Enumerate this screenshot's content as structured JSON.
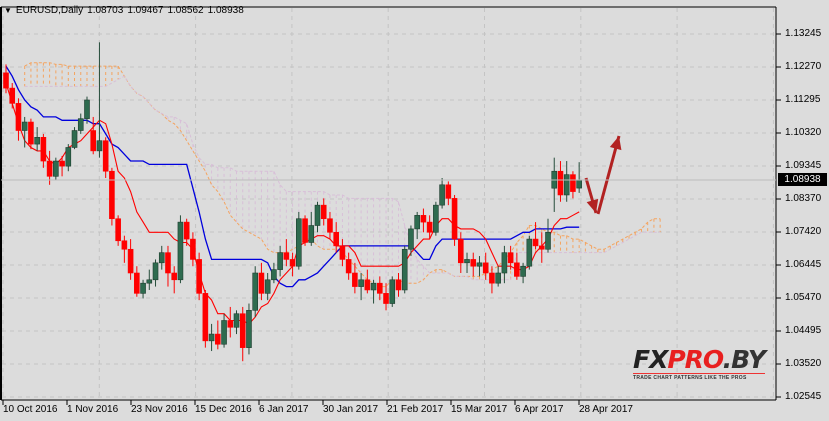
{
  "header": {
    "dropdown_icon": "triangle-down-icon",
    "symbol": "EURUSD,Daily",
    "open": "1.08703",
    "high": "1.09467",
    "low": "1.08562",
    "close": "1.08938"
  },
  "current_price_label": "1.08938",
  "watermark": {
    "fx": "FX",
    "pro": "PRO",
    "by": ".BY",
    "tagline": "TRADE CHART PATTERNS LIKE THE PROS"
  },
  "colors": {
    "background": "#dcdcdc",
    "grid": "#c4c4c4",
    "bull_candle": "#2e6b4f",
    "bear_candle": "#ff0000",
    "tenkan": "#ff0000",
    "kijun": "#0000dd",
    "span_a": "#f4a460",
    "span_b": "#d8bfd8",
    "arrows": "#b22222"
  },
  "chart_data": {
    "type": "candlestick",
    "title": "EURUSD,Daily",
    "xlabel": "",
    "ylabel": "",
    "ylim": [
      1.02545,
      1.13245
    ],
    "grid": true,
    "y_ticks": [
      "1.13245",
      "1.12270",
      "1.11295",
      "1.10320",
      "1.09345",
      "1.08370",
      "1.07420",
      "1.06445",
      "1.05470",
      "1.04495",
      "1.03520",
      "1.02545"
    ],
    "x_ticks": [
      "10 Oct 2016",
      "1 Nov 2016",
      "23 Nov 2016",
      "15 Dec 2016",
      "6 Jan 2017",
      "30 Jan 2017",
      "21 Feb 2017",
      "15 Mar 2017",
      "6 Apr 2017",
      "28 Apr 2017"
    ],
    "last_ohlc": {
      "open": 1.08703,
      "high": 1.09467,
      "low": 1.08562,
      "close": 1.08938
    },
    "indicators": [
      "Ichimoku Kinko Hyo: Tenkan-sen (red)",
      "Kijun-sen (blue)",
      "Senkou Span A (sandy, dotted cloud)",
      "Senkou Span B (thistle, dotted cloud)"
    ],
    "annotations": [
      "Arrow down toward ~1.080",
      "Arrow up toward ~1.103"
    ],
    "candles": [
      [
        1.121,
        1.1235,
        1.115,
        1.1165
      ],
      [
        1.1165,
        1.118,
        1.1105,
        1.112
      ],
      [
        1.112,
        1.1135,
        1.101,
        1.104
      ],
      [
        1.104,
        1.108,
        1.099,
        1.1065
      ],
      [
        1.1065,
        1.1075,
        1.0985,
        1.1
      ],
      [
        1.1,
        1.105,
        1.098,
        1.102
      ],
      [
        1.102,
        1.103,
        1.093,
        1.095
      ],
      [
        1.095,
        1.098,
        1.088,
        1.0905
      ],
      [
        1.0905,
        1.096,
        1.0895,
        1.095
      ],
      [
        1.095,
        1.0965,
        1.0905,
        1.0935
      ],
      [
        1.0935,
        1.1,
        1.092,
        1.099
      ],
      [
        1.099,
        1.105,
        1.0985,
        1.104
      ],
      [
        1.104,
        1.109,
        1.103,
        1.1075
      ],
      [
        1.1075,
        1.114,
        1.106,
        1.113
      ],
      [
        1.104,
        1.108,
        1.097,
        1.098
      ],
      [
        1.098,
        1.13,
        1.096,
        1.101
      ],
      [
        1.101,
        1.102,
        1.09,
        1.092
      ],
      [
        1.092,
        1.093,
        1.076,
        1.078
      ],
      [
        1.078,
        1.079,
        1.07,
        1.0715
      ],
      [
        1.0715,
        1.073,
        1.065,
        1.069
      ],
      [
        1.069,
        1.072,
        1.06,
        1.062
      ],
      [
        1.062,
        1.064,
        1.055,
        1.056
      ],
      [
        1.056,
        1.06,
        1.0545,
        1.059
      ],
      [
        1.059,
        1.063,
        1.057,
        1.06
      ],
      [
        1.06,
        1.066,
        1.058,
        1.065
      ],
      [
        1.065,
        1.07,
        1.063,
        1.068
      ],
      [
        1.068,
        1.07,
        1.058,
        1.062
      ],
      [
        1.062,
        1.064,
        1.056,
        1.06
      ],
      [
        1.06,
        1.079,
        1.059,
        1.077
      ],
      [
        1.077,
        1.078,
        1.07,
        1.072
      ],
      [
        1.072,
        1.074,
        1.064,
        1.066
      ],
      [
        1.066,
        1.068,
        1.054,
        1.056
      ],
      [
        1.056,
        1.057,
        1.04,
        1.042
      ],
      [
        1.042,
        1.047,
        1.039,
        1.044
      ],
      [
        1.044,
        1.048,
        1.0395,
        1.041
      ],
      [
        1.041,
        1.05,
        1.04,
        1.048
      ],
      [
        1.048,
        1.052,
        1.043,
        1.046
      ],
      [
        1.046,
        1.051,
        1.044,
        1.05
      ],
      [
        1.05,
        1.052,
        1.036,
        1.04
      ],
      [
        1.04,
        1.053,
        1.038,
        1.051
      ],
      [
        1.051,
        1.064,
        1.049,
        1.062
      ],
      [
        1.062,
        1.065,
        1.054,
        1.056
      ],
      [
        1.056,
        1.062,
        1.054,
        1.06
      ],
      [
        1.06,
        1.065,
        1.059,
        1.063
      ],
      [
        1.063,
        1.07,
        1.061,
        1.068
      ],
      [
        1.068,
        1.072,
        1.064,
        1.066
      ],
      [
        1.066,
        1.068,
        1.061,
        1.064
      ],
      [
        1.064,
        1.08,
        1.063,
        1.078
      ],
      [
        1.078,
        1.079,
        1.07,
        1.071
      ],
      [
        1.071,
        1.08,
        1.07,
        1.076
      ],
      [
        1.076,
        1.083,
        1.074,
        1.082
      ],
      [
        1.082,
        1.084,
        1.076,
        1.078
      ],
      [
        1.078,
        1.08,
        1.072,
        1.074
      ],
      [
        1.074,
        1.077,
        1.068,
        1.07
      ],
      [
        1.07,
        1.072,
        1.064,
        1.066
      ],
      [
        1.066,
        1.068,
        1.06,
        1.062
      ],
      [
        1.062,
        1.065,
        1.056,
        1.058
      ],
      [
        1.058,
        1.062,
        1.054,
        1.06
      ],
      [
        1.06,
        1.063,
        1.056,
        1.057
      ],
      [
        1.057,
        1.06,
        1.053,
        1.059
      ],
      [
        1.059,
        1.061,
        1.054,
        1.056
      ],
      [
        1.056,
        1.059,
        1.051,
        1.053
      ],
      [
        1.053,
        1.061,
        1.052,
        1.06
      ],
      [
        1.06,
        1.062,
        1.055,
        1.057
      ],
      [
        1.057,
        1.07,
        1.056,
        1.069
      ],
      [
        1.069,
        1.076,
        1.067,
        1.075
      ],
      [
        1.075,
        1.08,
        1.072,
        1.079
      ],
      [
        1.079,
        1.081,
        1.074,
        1.077
      ],
      [
        1.077,
        1.079,
        1.072,
        1.074
      ],
      [
        1.074,
        1.083,
        1.073,
        1.082
      ],
      [
        1.082,
        1.09,
        1.081,
        1.088
      ],
      [
        1.088,
        1.089,
        1.082,
        1.084
      ],
      [
        1.084,
        1.085,
        1.07,
        1.072
      ],
      [
        1.072,
        1.074,
        1.062,
        1.065
      ],
      [
        1.065,
        1.068,
        1.062,
        1.066
      ],
      [
        1.066,
        1.068,
        1.061,
        1.064
      ],
      [
        1.064,
        1.067,
        1.061,
        1.065
      ],
      [
        1.065,
        1.068,
        1.06,
        1.062
      ],
      [
        1.062,
        1.064,
        1.056,
        1.059
      ],
      [
        1.059,
        1.064,
        1.058,
        1.062
      ],
      [
        1.062,
        1.07,
        1.059,
        1.068
      ],
      [
        1.068,
        1.07,
        1.063,
        1.065
      ],
      [
        1.065,
        1.068,
        1.06,
        1.061
      ],
      [
        1.061,
        1.065,
        1.059,
        1.064
      ],
      [
        1.064,
        1.073,
        1.063,
        1.072
      ],
      [
        1.072,
        1.077,
        1.069,
        1.07
      ],
      [
        1.07,
        1.074,
        1.065,
        1.069
      ],
      [
        1.069,
        1.078,
        1.068,
        1.074
      ],
      [
        1.087,
        1.096,
        1.08,
        1.092
      ],
      [
        1.092,
        1.095,
        1.083,
        1.085
      ],
      [
        1.085,
        1.095,
        1.083,
        1.091
      ],
      [
        1.091,
        1.092,
        1.084,
        1.086
      ],
      [
        1.08703,
        1.09467,
        1.08562,
        1.08938
      ]
    ],
    "tenkan": [
      1.118,
      1.112,
      1.106,
      1.101,
      1.099,
      1.098,
      1.098,
      1.095,
      1.094,
      1.096,
      1.099,
      1.1,
      1.101,
      1.103,
      1.105,
      1.107,
      1.106,
      1.1,
      1.092,
      1.09,
      1.086,
      1.08,
      1.077,
      1.074,
      1.074,
      1.074,
      1.074,
      1.072,
      1.071,
      1.071,
      1.069,
      1.062,
      1.056,
      1.054,
      1.05,
      1.05,
      1.048,
      1.048,
      1.048,
      1.047,
      1.049,
      1.052,
      1.053,
      1.056,
      1.06,
      1.062,
      1.064,
      1.07,
      1.071,
      1.072,
      1.073,
      1.073,
      1.072,
      1.07,
      1.07,
      1.07,
      1.068,
      1.064,
      1.064,
      1.064,
      1.064,
      1.064,
      1.064,
      1.064,
      1.065,
      1.068,
      1.07,
      1.072,
      1.072,
      1.076,
      1.078,
      1.078,
      1.076,
      1.075,
      1.075,
      1.075,
      1.074,
      1.072,
      1.068,
      1.064,
      1.064,
      1.064,
      1.063,
      1.063,
      1.064,
      1.068,
      1.07,
      1.072,
      1.076,
      1.078,
      1.078,
      1.079,
      1.08
    ],
    "kijun": [
      1.123,
      1.12,
      1.116,
      1.113,
      1.111,
      1.11,
      1.108,
      1.108,
      1.108,
      1.107,
      1.107,
      1.107,
      1.107,
      1.107,
      1.106,
      1.106,
      1.103,
      1.1,
      1.099,
      1.097,
      1.095,
      1.095,
      1.095,
      1.094,
      1.094,
      1.094,
      1.094,
      1.094,
      1.094,
      1.094,
      1.087,
      1.08,
      1.072,
      1.066,
      1.066,
      1.066,
      1.066,
      1.066,
      1.066,
      1.066,
      1.066,
      1.066,
      1.065,
      1.061,
      1.059,
      1.058,
      1.058,
      1.06,
      1.06,
      1.061,
      1.062,
      1.064,
      1.066,
      1.068,
      1.07,
      1.07,
      1.07,
      1.07,
      1.07,
      1.07,
      1.07,
      1.07,
      1.07,
      1.07,
      1.07,
      1.07,
      1.068,
      1.066,
      1.066,
      1.07,
      1.072,
      1.072,
      1.072,
      1.072,
      1.072,
      1.072,
      1.072,
      1.072,
      1.072,
      1.072,
      1.072,
      1.072,
      1.073,
      1.074,
      1.074,
      1.075,
      1.075,
      1.075,
      1.075,
      1.075,
      1.0755,
      1.0755,
      1.0755
    ],
    "span_a_x_start": 3,
    "span_a": [
      1.123,
      1.124,
      1.124,
      1.124,
      1.124,
      1.1235,
      1.1235,
      1.123,
      1.123,
      1.123,
      1.123,
      1.123,
      1.123,
      1.123,
      1.123,
      1.123,
      1.12,
      1.117,
      1.115,
      1.114,
      1.112,
      1.11,
      1.109,
      1.107,
      1.106,
      1.104,
      1.101,
      1.098,
      1.095,
      1.092,
      1.088,
      1.086,
      1.083,
      1.079,
      1.077,
      1.075,
      1.074,
      1.073,
      1.072,
      1.069,
      1.068,
      1.068,
      1.068,
      1.069,
      1.07,
      1.072,
      1.072,
      1.07,
      1.069,
      1.069,
      1.069,
      1.068,
      1.066,
      1.064,
      1.062,
      1.06,
      1.059,
      1.058,
      1.058,
      1.06,
      1.06,
      1.059,
      1.059,
      1.059,
      1.06,
      1.062,
      1.063,
      1.063,
      1.062,
      1.061,
      1.061,
      1.061,
      1.061,
      1.061,
      1.062,
      1.063,
      1.064,
      1.066,
      1.068,
      1.071,
      1.073,
      1.076,
      1.076,
      1.075,
      1.074,
      1.074,
      1.073,
      1.073,
      1.072,
      1.072,
      1.071,
      1.07,
      1.069,
      1.069,
      1.07,
      1.071,
      1.072,
      1.073,
      1.074,
      1.075,
      1.077,
      1.078,
      1.078
    ],
    "span_b": [
      1.117,
      1.117,
      1.117,
      1.117,
      1.117,
      1.117,
      1.117,
      1.117,
      1.117,
      1.117,
      1.117,
      1.117,
      1.117,
      1.117,
      1.118,
      1.119,
      1.12,
      1.117,
      1.115,
      1.114,
      1.112,
      1.11,
      1.109,
      1.108,
      1.108,
      1.107,
      1.106,
      1.1,
      1.096,
      1.094,
      1.094,
      1.093,
      1.093,
      1.093,
      1.092,
      1.092,
      1.092,
      1.092,
      1.092,
      1.092,
      1.092,
      1.088,
      1.086,
      1.086,
      1.086,
      1.086,
      1.086,
      1.086,
      1.086,
      1.085,
      1.085,
      1.085,
      1.084,
      1.084,
      1.084,
      1.084,
      1.084,
      1.084,
      1.084,
      1.084,
      1.083,
      1.076,
      1.07,
      1.066,
      1.064,
      1.062,
      1.062,
      1.062,
      1.062,
      1.061,
      1.061,
      1.061,
      1.06,
      1.06,
      1.06,
      1.06,
      1.06,
      1.06,
      1.06,
      1.068,
      1.068,
      1.068,
      1.068,
      1.068,
      1.068,
      1.068,
      1.068,
      1.068,
      1.068,
      1.068,
      1.068,
      1.068,
      1.068,
      1.068,
      1.069,
      1.07,
      1.071,
      1.072,
      1.073,
      1.074,
      1.074,
      1.074,
      1.074
    ]
  }
}
